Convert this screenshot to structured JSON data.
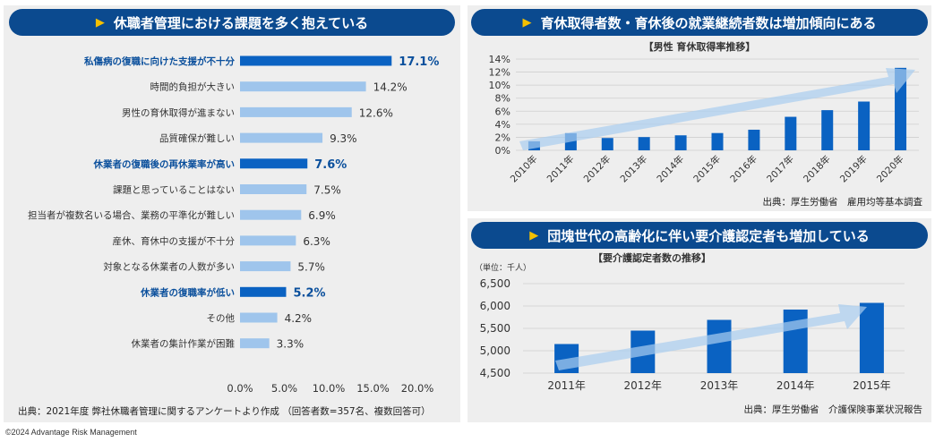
{
  "colors": {
    "header_bg": "#0b4a8f",
    "accent_triangle": "#f5c000",
    "bar_dark": "#0a62c2",
    "bar_light": "#9fc5ec",
    "highlight_text": "#0a4f9c",
    "arrow": "#a9cdf0"
  },
  "left": {
    "header": "休職者管理における課題を多く抱えている",
    "source": "出典：2021年度 弊社休職者管理に関するアンケートより作成 （回答者数=357名、複数回答可）",
    "chart_data": {
      "type": "bar",
      "orientation": "horizontal",
      "categories": [
        "私傷病の復職に向けた支援が不十分",
        "時間的負担が大きい",
        "男性の育休取得が進まない",
        "品質確保が難しい",
        "休業者の復職後の再休業率が高い",
        "課題と思っていることはない",
        "担当者が複数名いる場合、業務の平準化が難しい",
        "産休、育休中の支援が不十分",
        "対象となる休業者の人数が多い",
        "休業者の復職率が低い",
        "その他",
        "休業者の集計作業が困難"
      ],
      "values": [
        17.1,
        14.2,
        12.6,
        9.3,
        7.6,
        7.5,
        6.9,
        6.3,
        5.7,
        5.2,
        4.2,
        3.3
      ],
      "value_labels": [
        "17.1%",
        "14.2%",
        "12.6%",
        "9.3%",
        "7.6%",
        "7.5%",
        "6.9%",
        "6.3%",
        "5.7%",
        "5.2%",
        "4.2%",
        "3.3%"
      ],
      "highlighted": [
        true,
        false,
        false,
        false,
        true,
        false,
        false,
        false,
        false,
        true,
        false,
        false
      ],
      "xlim": [
        0,
        20
      ],
      "xticks": [
        "0.0%",
        "5.0%",
        "10.0%",
        "15.0%",
        "20.0%"
      ],
      "title": "",
      "xlabel": "",
      "ylabel": ""
    }
  },
  "top_right": {
    "header": "育休取得者数・育休後の就業継続者数は増加傾向にある",
    "source": "出典：厚生労働省　雇用均等基本調査",
    "chart_data": {
      "type": "bar",
      "title": "【男性 育休取得率推移】",
      "categories": [
        "2010年",
        "2011年",
        "2012年",
        "2013年",
        "2014年",
        "2015年",
        "2016年",
        "2017年",
        "2018年",
        "2019年",
        "2020年"
      ],
      "values": [
        1.38,
        2.63,
        1.89,
        2.03,
        2.3,
        2.65,
        3.16,
        5.14,
        6.16,
        7.48,
        12.65
      ],
      "ylim": [
        0,
        14
      ],
      "yticks": [
        "0%",
        "2%",
        "4%",
        "6%",
        "8%",
        "10%",
        "12%",
        "14%"
      ],
      "trend_arrow": true
    }
  },
  "bottom_right": {
    "header": "団塊世代の高齢化に伴い要介護認定者も増加している",
    "source": "出典：厚生労働省　介護保険事業状況報告",
    "chart_data": {
      "type": "bar",
      "title": "【要介護認定者数の推移】",
      "unit": "（単位：千人）",
      "categories": [
        "2011年",
        "2012年",
        "2013年",
        "2014年",
        "2015年"
      ],
      "values": [
        5150,
        5450,
        5690,
        5920,
        6070
      ],
      "ylim": [
        4500,
        6500
      ],
      "yticks": [
        "4,500",
        "5,000",
        "5,500",
        "6,000",
        "6,500"
      ],
      "trend_arrow": true
    }
  },
  "copyright": "©2024 Advantage Risk Management"
}
